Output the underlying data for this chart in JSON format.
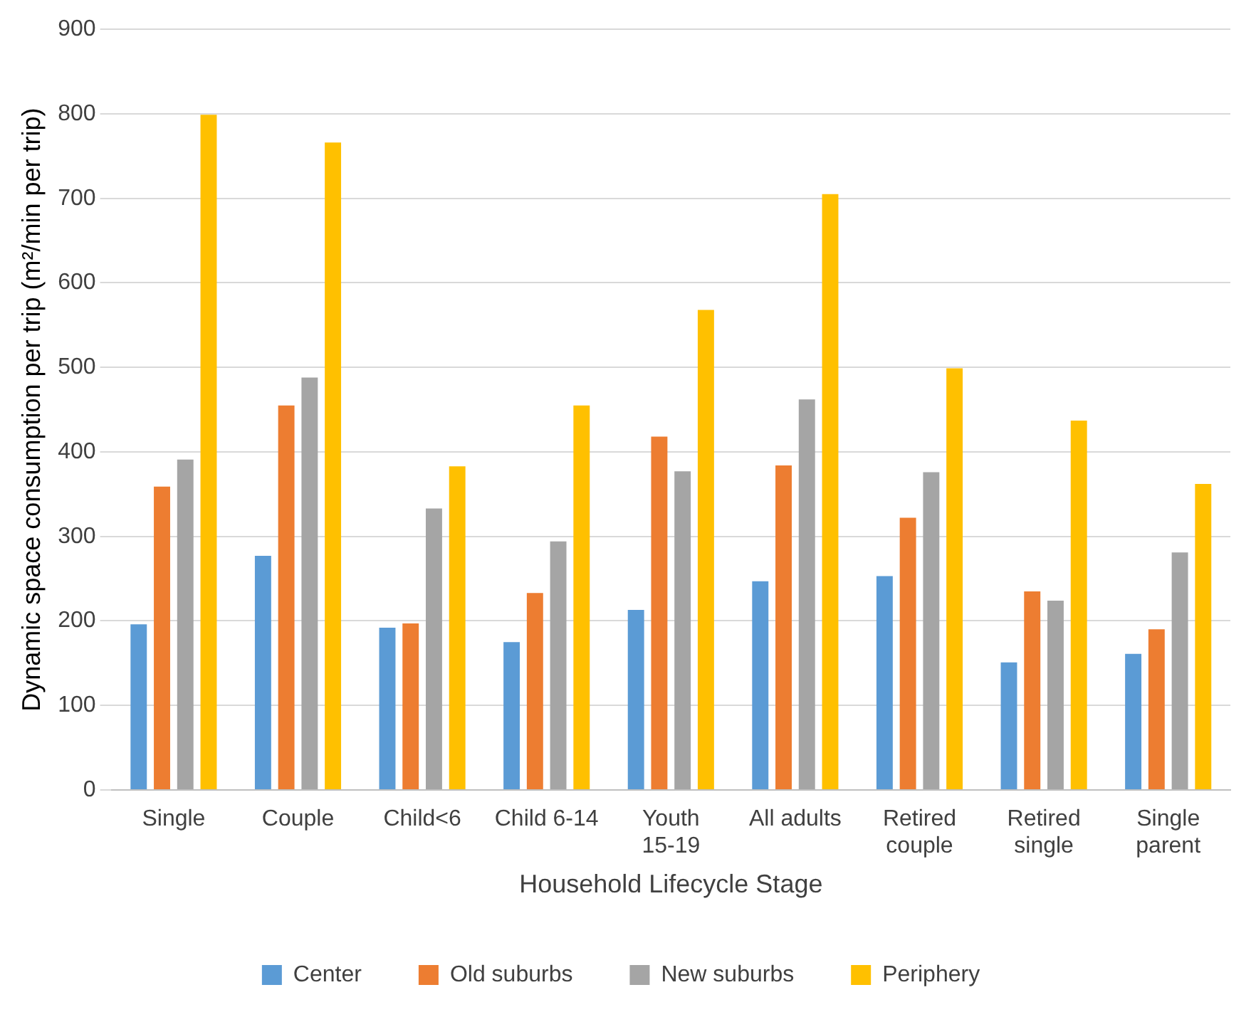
{
  "chart_data": {
    "type": "bar",
    "xlabel": "Household Lifecycle Stage",
    "ylabel": "Dynamic space consumption per trip (m²/min per trip)",
    "categories": [
      "Single",
      "Couple",
      "Child<6",
      "Child 6-14",
      "Youth 15-19",
      "All adults",
      "Retired couple",
      "Retired single",
      "Single parent"
    ],
    "series": [
      {
        "name": "Center",
        "color": "#5b9bd5",
        "values": [
          196,
          277,
          192,
          175,
          213,
          247,
          253,
          151,
          161
        ]
      },
      {
        "name": "Old suburbs",
        "color": "#ed7d31",
        "values": [
          359,
          455,
          197,
          233,
          418,
          384,
          322,
          235,
          190
        ]
      },
      {
        "name": "New suburbs",
        "color": "#a5a5a5",
        "values": [
          391,
          488,
          333,
          294,
          377,
          462,
          376,
          224,
          281
        ]
      },
      {
        "name": "Periphery",
        "color": "#ffc000",
        "values": [
          799,
          766,
          383,
          455,
          568,
          705,
          499,
          437,
          362
        ]
      }
    ],
    "ylim": [
      0,
      900
    ],
    "yticks": [
      0,
      100,
      200,
      300,
      400,
      500,
      600,
      700,
      800,
      900
    ],
    "grid": "y",
    "legend": "bottom"
  }
}
